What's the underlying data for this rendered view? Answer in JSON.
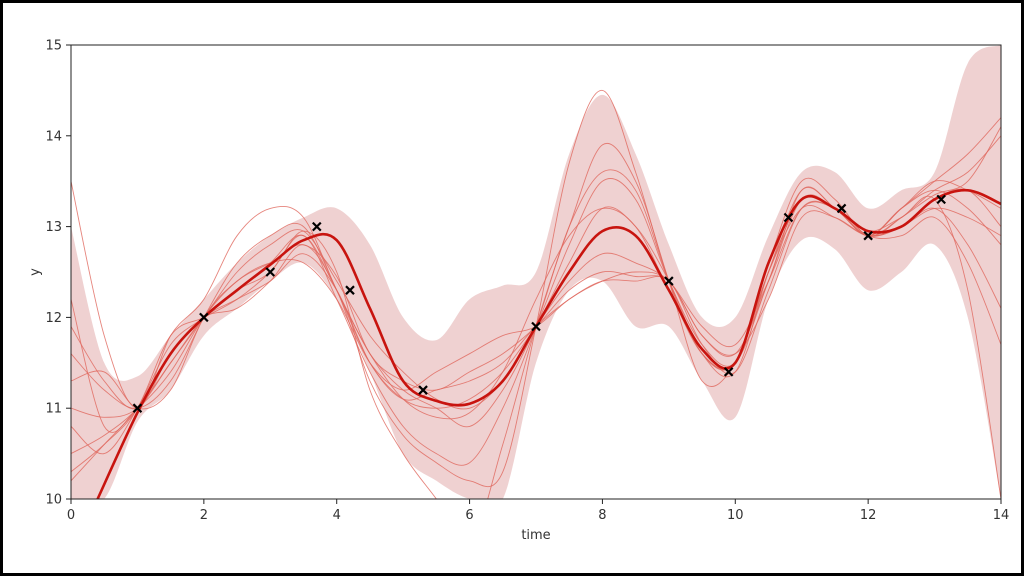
{
  "chart_data": {
    "type": "line",
    "title": "",
    "xlabel": "time",
    "ylabel": "y",
    "xlim": [
      0,
      14
    ],
    "ylim": [
      10,
      15
    ],
    "xticks": [
      "0",
      "2",
      "4",
      "6",
      "8",
      "10",
      "12",
      "14"
    ],
    "yticks": [
      "10",
      "11",
      "12",
      "13",
      "14",
      "15"
    ],
    "grid": false,
    "legend": "none",
    "colors": {
      "mean": "#c8140f",
      "samples": "#e0675c",
      "band": "#dfa3a3",
      "observations": "#000000"
    },
    "observations": {
      "x": [
        1.0,
        2.0,
        3.0,
        3.7,
        4.2,
        5.3,
        7.0,
        9.0,
        9.9,
        10.8,
        11.6,
        12.0,
        13.1
      ],
      "y": [
        11.0,
        12.0,
        12.5,
        13.0,
        12.3,
        11.2,
        11.9,
        12.4,
        11.4,
        13.1,
        13.2,
        12.9,
        13.3
      ]
    },
    "posterior_mean": {
      "x": [
        0.4,
        1.0,
        1.5,
        2.0,
        2.5,
        3.0,
        3.5,
        4.0,
        4.5,
        5.0,
        5.5,
        6.0,
        6.5,
        7.0,
        7.5,
        8.0,
        8.5,
        9.0,
        9.5,
        10.0,
        10.5,
        11.0,
        11.5,
        12.0,
        12.5,
        13.0,
        13.5,
        14.0
      ],
      "y": [
        10.0,
        10.95,
        11.6,
        12.0,
        12.3,
        12.58,
        12.85,
        12.85,
        12.1,
        11.3,
        11.08,
        11.05,
        11.3,
        11.9,
        12.5,
        12.95,
        12.9,
        12.3,
        11.65,
        11.5,
        12.6,
        13.3,
        13.2,
        12.95,
        13.0,
        13.3,
        13.4,
        13.25
      ]
    },
    "confidence_band": {
      "x": [
        0,
        0.5,
        1.0,
        1.5,
        2.0,
        2.5,
        3.0,
        3.5,
        4.0,
        4.5,
        5.0,
        5.5,
        6.0,
        6.5,
        7.0,
        7.5,
        8.0,
        8.5,
        9.0,
        9.5,
        10.0,
        10.5,
        11.0,
        11.5,
        12.0,
        12.5,
        13.0,
        13.5,
        14.0
      ],
      "lower": [
        10.0,
        10.0,
        10.85,
        11.2,
        11.8,
        12.1,
        12.4,
        12.6,
        12.2,
        11.4,
        10.5,
        10.2,
        10.0,
        10.0,
        11.5,
        12.3,
        12.4,
        11.9,
        11.9,
        11.3,
        10.9,
        12.2,
        12.85,
        12.75,
        12.3,
        12.5,
        12.8,
        12.0,
        10.0
      ],
      "upper": [
        13.0,
        11.5,
        11.35,
        11.8,
        12.2,
        12.6,
        12.9,
        13.1,
        13.2,
        12.8,
        12.0,
        11.75,
        12.2,
        12.35,
        12.5,
        13.8,
        14.45,
        13.8,
        12.8,
        12.0,
        12.0,
        12.9,
        13.6,
        13.6,
        13.2,
        13.4,
        13.6,
        14.8,
        15.0
      ]
    },
    "samples": {
      "x": [
        0,
        0.5,
        1.0,
        1.5,
        2.0,
        2.5,
        3.0,
        3.5,
        4.0,
        4.5,
        5.0,
        5.5,
        6.0,
        6.5,
        7.0,
        7.5,
        8.0,
        8.5,
        9.0,
        9.5,
        10.0,
        10.5,
        11.0,
        11.5,
        12.0,
        12.5,
        13.0,
        13.5,
        14.0
      ],
      "series": [
        {
          "values": [
            13.5,
            11.8,
            11.0,
            11.8,
            12.2,
            12.9,
            13.2,
            13.1,
            12.3,
            11.6,
            11.1,
            10.9,
            10.95,
            11.4,
            12.2,
            12.9,
            13.2,
            13.0,
            12.3,
            11.6,
            11.5,
            12.5,
            13.3,
            13.2,
            12.95,
            13.1,
            13.3,
            12.3,
            10.0
          ]
        },
        {
          "values": [
            12.2,
            10.8,
            11.0,
            11.4,
            12.0,
            12.4,
            12.6,
            12.8,
            12.45,
            11.6,
            11.3,
            11.2,
            11.4,
            11.6,
            11.9,
            12.3,
            12.5,
            12.45,
            12.4,
            11.8,
            11.6,
            12.4,
            13.4,
            13.2,
            12.9,
            13.1,
            13.35,
            13.5,
            14.1
          ]
        },
        {
          "values": [
            10.2,
            10.6,
            11.0,
            11.6,
            12.0,
            12.2,
            12.4,
            12.7,
            12.3,
            11.5,
            11.1,
            11.2,
            11.3,
            11.5,
            11.9,
            12.2,
            12.4,
            12.4,
            12.4,
            11.7,
            11.4,
            12.3,
            13.2,
            13.2,
            12.9,
            13.2,
            13.4,
            13.2,
            12.8
          ]
        },
        {
          "values": [
            11.0,
            10.9,
            11.0,
            11.5,
            12.0,
            12.3,
            12.5,
            12.95,
            12.5,
            11.2,
            10.5,
            10.0,
            9.5,
            10.6,
            11.9,
            13.0,
            13.9,
            13.5,
            12.4,
            11.3,
            11.5,
            12.5,
            13.2,
            13.1,
            12.9,
            13.0,
            13.3,
            13.4,
            13.0
          ]
        },
        {
          "values": [
            10.5,
            10.7,
            11.0,
            11.5,
            12.0,
            12.5,
            12.8,
            12.95,
            12.4,
            11.8,
            11.4,
            11.1,
            11.0,
            11.3,
            11.9,
            12.6,
            13.2,
            13.0,
            12.4,
            11.6,
            11.5,
            12.6,
            13.5,
            13.3,
            12.9,
            13.1,
            13.4,
            13.6,
            14.0
          ]
        },
        {
          "values": [
            11.3,
            11.4,
            11.0,
            11.2,
            12.0,
            12.4,
            12.6,
            12.6,
            12.2,
            11.5,
            11.2,
            11.4,
            11.6,
            11.8,
            11.9,
            12.2,
            12.4,
            12.5,
            12.4,
            11.8,
            11.6,
            12.2,
            13.1,
            13.1,
            12.9,
            13.0,
            13.2,
            12.8,
            12.1
          ]
        },
        {
          "values": [
            10.8,
            10.5,
            11.0,
            11.7,
            12.0,
            12.3,
            12.6,
            12.9,
            12.3,
            11.6,
            11.2,
            11.0,
            10.8,
            11.2,
            11.9,
            12.8,
            13.5,
            13.3,
            12.4,
            11.7,
            11.5,
            12.4,
            13.3,
            13.2,
            12.9,
            13.2,
            13.5,
            13.4,
            13.2
          ]
        },
        {
          "values": [
            11.6,
            11.2,
            11.0,
            11.3,
            12.0,
            12.6,
            12.9,
            13.0,
            12.3,
            11.5,
            11.1,
            11.0,
            11.1,
            11.4,
            11.9,
            12.4,
            12.7,
            12.6,
            12.4,
            11.9,
            11.7,
            12.4,
            13.2,
            13.2,
            12.9,
            12.9,
            13.1,
            12.6,
            11.7
          ]
        },
        {
          "values": [
            10.3,
            10.6,
            11.0,
            11.8,
            12.0,
            12.2,
            12.5,
            12.9,
            12.2,
            11.4,
            10.8,
            10.5,
            10.4,
            11.0,
            11.9,
            13.0,
            13.6,
            13.4,
            12.4,
            11.6,
            11.5,
            12.5,
            13.3,
            13.2,
            12.9,
            13.2,
            13.5,
            13.8,
            14.2
          ]
        },
        {
          "values": [
            11.9,
            11.3,
            11.0,
            11.6,
            12.0,
            12.1,
            12.4,
            12.8,
            12.3,
            11.3,
            10.7,
            10.4,
            10.2,
            10.3,
            11.9,
            13.7,
            14.5,
            13.6,
            12.4,
            11.6,
            11.4,
            12.5,
            13.4,
            13.2,
            12.9,
            13.0,
            13.2,
            13.1,
            12.9
          ]
        }
      ]
    }
  }
}
